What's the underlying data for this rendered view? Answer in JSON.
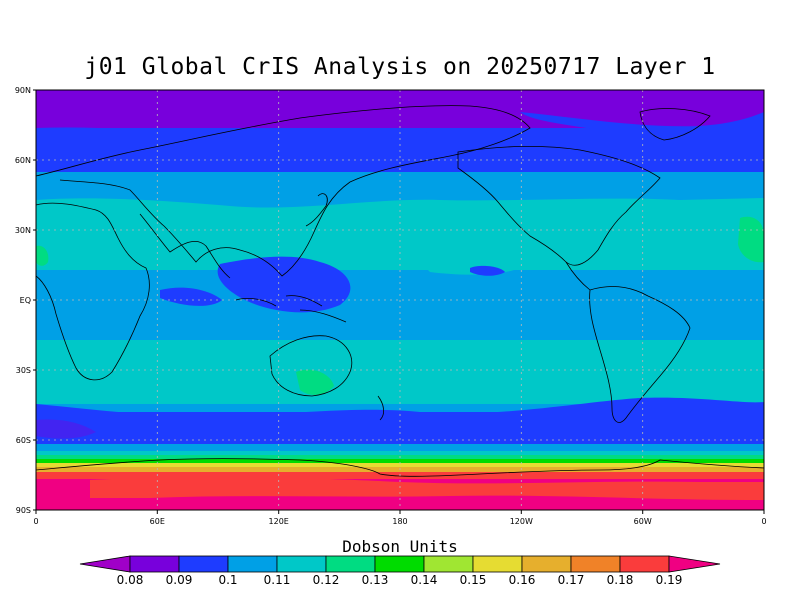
{
  "title": "j01 Global CrIS Analysis on 20250717 Layer 1",
  "map": {
    "lat_labels": [
      "90N",
      "60N",
      "30N",
      "EQ",
      "30S",
      "60S",
      "90S"
    ],
    "lon_labels": [
      "0",
      "60E",
      "120E",
      "180",
      "120W",
      "60W",
      "0"
    ],
    "grid": true,
    "projection": "cylindrical equidistant"
  },
  "colorbar": {
    "title": "Dobson Units",
    "labels": [
      "0.08",
      "0.09",
      "0.1",
      "0.11",
      "0.12",
      "0.13",
      "0.14",
      "0.15",
      "0.16",
      "0.17",
      "0.18",
      "0.19"
    ],
    "colors": [
      "#a000c8",
      "#7800dc",
      "#1e3cff",
      "#00a0e6",
      "#00c8c8",
      "#00dc82",
      "#00dc00",
      "#a0e632",
      "#e6dc32",
      "#e6af2d",
      "#f08228",
      "#fa3c3c",
      "#f00082"
    ]
  },
  "legend_colors": {
    "purple": "#7800dc",
    "blue": "#1e3cff",
    "lightblue": "#00a0e6",
    "cyan": "#00c8c8",
    "teal": "#00dc82",
    "green": "#00dc00",
    "lime": "#a0e632",
    "yellow": "#e6dc32",
    "orange": "#e6af2d",
    "darkorange": "#f08228",
    "red": "#fa3c3c",
    "magenta": "#f00082"
  }
}
